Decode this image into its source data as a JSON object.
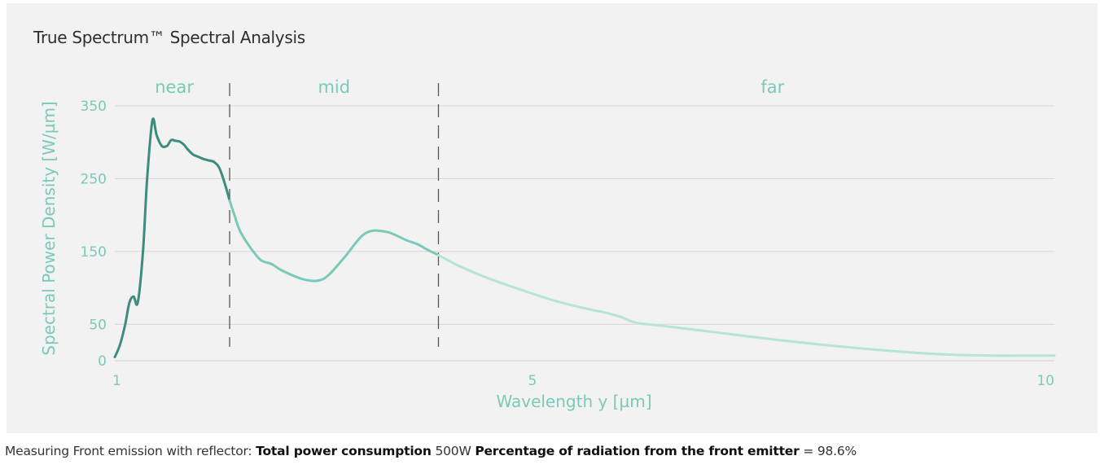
{
  "chart_data": {
    "type": "line",
    "title": "True Spectrum™ Spectral Analysis",
    "xlabel": "Wavelength y [µm]",
    "ylabel": "Spectral Power Density [W/µm]",
    "xlim": [
      1,
      10
    ],
    "ylim": [
      0,
      350
    ],
    "x_ticks": [
      1,
      5,
      10
    ],
    "x_tick_labels": [
      "1",
      "5",
      "10"
    ],
    "y_ticks": [
      0,
      50,
      150,
      250,
      350
    ],
    "y_tick_labels": [
      "0",
      "50",
      "150",
      "250",
      "350"
    ],
    "grid": "horizontal",
    "regions": [
      {
        "label": "near",
        "from": 1,
        "to": 2.1
      },
      {
        "label": "mid",
        "from": 2.1,
        "to": 4.1
      },
      {
        "label": "far",
        "from": 4.1,
        "to": 10
      }
    ],
    "boundaries": [
      2.1,
      4.1
    ],
    "colors": {
      "near": "#3d8c7c",
      "mid": "#7bc9b9",
      "far": "#b7e3d8",
      "grid": "#d6d6d6",
      "axis_text": "#7bc9b9"
    },
    "series": [
      {
        "x": [
          1.0,
          1.05,
          1.1,
          1.14,
          1.18,
          1.22,
          1.27,
          1.31,
          1.36,
          1.4,
          1.45,
          1.5,
          1.54,
          1.58,
          1.62,
          1.66,
          1.7,
          1.75,
          1.8,
          1.85,
          1.9,
          1.95,
          2.0,
          2.05,
          2.1,
          2.15,
          2.2,
          2.3,
          2.4,
          2.5,
          2.6,
          2.8,
          2.95,
          3.05,
          3.2,
          3.4,
          3.6,
          3.8,
          3.9,
          4.0,
          4.1,
          4.3,
          4.6,
          4.9,
          5.2,
          5.5,
          5.7,
          5.85,
          6.0,
          6.3,
          6.7,
          7.2,
          7.7,
          8.3,
          8.9,
          9.4,
          9.8,
          10.0
        ],
        "y": [
          5,
          22,
          50,
          80,
          88,
          80,
          150,
          250,
          330,
          310,
          295,
          295,
          303,
          302,
          301,
          297,
          290,
          283,
          280,
          277,
          275,
          273,
          265,
          245,
          220,
          198,
          178,
          155,
          138,
          133,
          124,
          112,
          110,
          118,
          142,
          175,
          177,
          165,
          160,
          152,
          145,
          130,
          112,
          97,
          83,
          72,
          66,
          60,
          52,
          47,
          40,
          31,
          23,
          15,
          9,
          7,
          7,
          7
        ]
      }
    ]
  },
  "caption": {
    "prefix": "Measuring Front emission with reflector:",
    "label1": "Total power consumption",
    "value1": "500W",
    "label2": "Percentage of radiation from the front emitter",
    "value2": "= 98.6%"
  }
}
